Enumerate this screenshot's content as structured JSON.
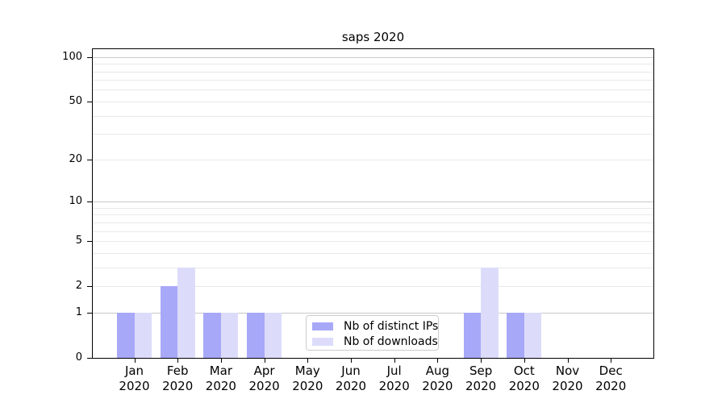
{
  "chart_data": {
    "type": "bar",
    "title": "saps 2020",
    "categories": [
      {
        "month": "Jan",
        "year": "2020"
      },
      {
        "month": "Feb",
        "year": "2020"
      },
      {
        "month": "Mar",
        "year": "2020"
      },
      {
        "month": "Apr",
        "year": "2020"
      },
      {
        "month": "May",
        "year": "2020"
      },
      {
        "month": "Jun",
        "year": "2020"
      },
      {
        "month": "Jul",
        "year": "2020"
      },
      {
        "month": "Aug",
        "year": "2020"
      },
      {
        "month": "Sep",
        "year": "2020"
      },
      {
        "month": "Oct",
        "year": "2020"
      },
      {
        "month": "Nov",
        "year": "2020"
      },
      {
        "month": "Dec",
        "year": "2020"
      }
    ],
    "series": [
      {
        "key": "distinct-ips",
        "name": "Nb of distinct IPs",
        "color": "#a8a8f8",
        "values": [
          1,
          2,
          1,
          1,
          0,
          0,
          0,
          0,
          1,
          1,
          0,
          0
        ]
      },
      {
        "key": "downloads",
        "name": "Nb of downloads",
        "color": "#dcdcfa",
        "values": [
          1,
          3,
          1,
          1,
          0,
          0,
          0,
          0,
          3,
          1,
          0,
          0
        ]
      }
    ],
    "yscale": "log1p",
    "ylim": [
      0,
      113
    ],
    "yticks": [
      0,
      1,
      2,
      5,
      10,
      20,
      50,
      100
    ],
    "major_gridlines": [
      1,
      10,
      100
    ],
    "minor_gridlines": [
      2,
      3,
      4,
      5,
      6,
      7,
      8,
      9,
      20,
      30,
      40,
      50,
      60,
      70,
      80,
      90
    ],
    "grid": true,
    "legend_position": "lower-center-inside",
    "colors": {
      "major_grid": "#c9c9c9",
      "minor_grid": "#e9e9e9",
      "spine": "#000000",
      "text": "#000000"
    }
  }
}
